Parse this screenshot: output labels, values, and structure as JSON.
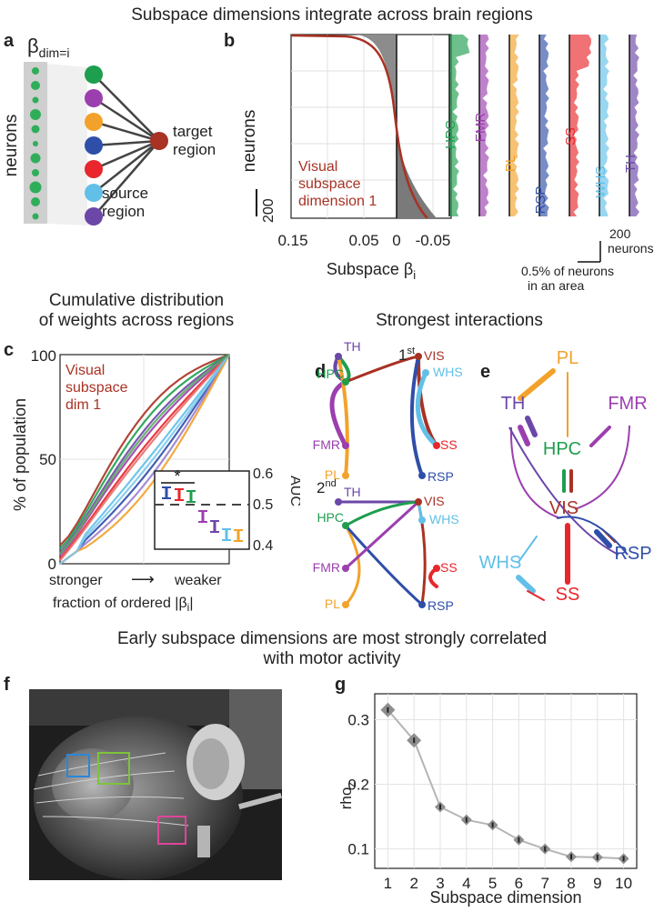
{
  "titles": {
    "top": "Subspace dimensions integrate across brain regions",
    "cumulative_1": "Cumulative distribution",
    "cumulative_2": "of weights across regions",
    "strongest": "Strongest interactions",
    "early_1": "Early subspace dimensions are most strongly correlated",
    "early_2": "with motor activity"
  },
  "panels": {
    "a": "a",
    "b": "b",
    "c": "c",
    "d": "d",
    "e": "e",
    "f": "f",
    "g": "g"
  },
  "panel_a": {
    "beta": "β",
    "beta_sub": "dim=i",
    "neurons": "neurons",
    "target_1": "target",
    "target_2": "region",
    "source_1": "source",
    "source_2": "region"
  },
  "panel_b": {
    "ylabel": "neurons",
    "scale": "200",
    "ticks": [
      "0.15",
      "0.05",
      "0",
      "-0.05"
    ],
    "xlabel": "Subspace β",
    "xlabel_sub": "i",
    "inset_1": "Visual",
    "inset_2": "subspace",
    "inset_3": "dimension 1",
    "regions": [
      "HPC",
      "FMR",
      "PL",
      "RSP",
      "SS",
      "WHS",
      "TH"
    ],
    "scale_n_1": "200",
    "scale_n_2": "neurons",
    "scale_pct_1": "0.5% of neurons",
    "scale_pct_2": "in an area"
  },
  "panel_c": {
    "ylabel": "% of population",
    "yticks": [
      "0",
      "50",
      "100"
    ],
    "legend_1": "Visual",
    "legend_2": "subspace",
    "legend_3": "dim 1",
    "x_left": "stronger",
    "x_right": "weaker",
    "arrow": "⟶",
    "xlabel": "fraction of ordered |β",
    "xlabel_sub": "i",
    "xlabel_end": "|",
    "auc_label": "AUC",
    "auc_ticks": [
      "0.6",
      "0.5",
      "0.4"
    ],
    "star": "*"
  },
  "panel_d": {
    "first": "1",
    "first_sup": "st",
    "second": "2",
    "second_sup": "nd",
    "regions": [
      "TH",
      "HPC",
      "FMR",
      "PL",
      "VIS",
      "WHS",
      "SS",
      "RSP"
    ]
  },
  "panel_e": {
    "regions": [
      "PL",
      "TH",
      "FMR",
      "HPC",
      "VIS",
      "WHS",
      "RSP",
      "SS"
    ]
  },
  "panel_g": {
    "ylabel": "rho",
    "ylabel_sub": "z",
    "xlabel": "Subspace dimension"
  },
  "colors": {
    "HPC": "#1e9e4f",
    "FMR": "#9b3fae",
    "PL": "#f2a22a",
    "RSP": "#2f4ea8",
    "SS": "#e8262b",
    "WHS": "#62c0e8",
    "TH": "#6b47a8",
    "VIS": "#a83224",
    "roi_blue": "#2a86d8",
    "roi_green": "#7cc43a",
    "roi_magenta": "#e0449a"
  },
  "chart_data": [
    {
      "type": "scatter",
      "x": [
        1,
        2,
        3,
        4,
        5,
        6,
        7,
        8,
        9,
        10
      ],
      "values": [
        0.315,
        0.268,
        0.165,
        0.145,
        0.137,
        0.114,
        0.1,
        0.088,
        0.087,
        0.085
      ],
      "xlabel": "Subspace dimension",
      "ylabel": "rhoz",
      "xlim": [
        0.5,
        10.5
      ],
      "ylim": [
        0.07,
        0.34
      ],
      "yticks": [
        0.1,
        0.2,
        0.3
      ],
      "xticks": [
        1,
        2,
        3,
        4,
        5,
        6,
        7,
        8,
        9,
        10
      ],
      "grid": true
    }
  ]
}
